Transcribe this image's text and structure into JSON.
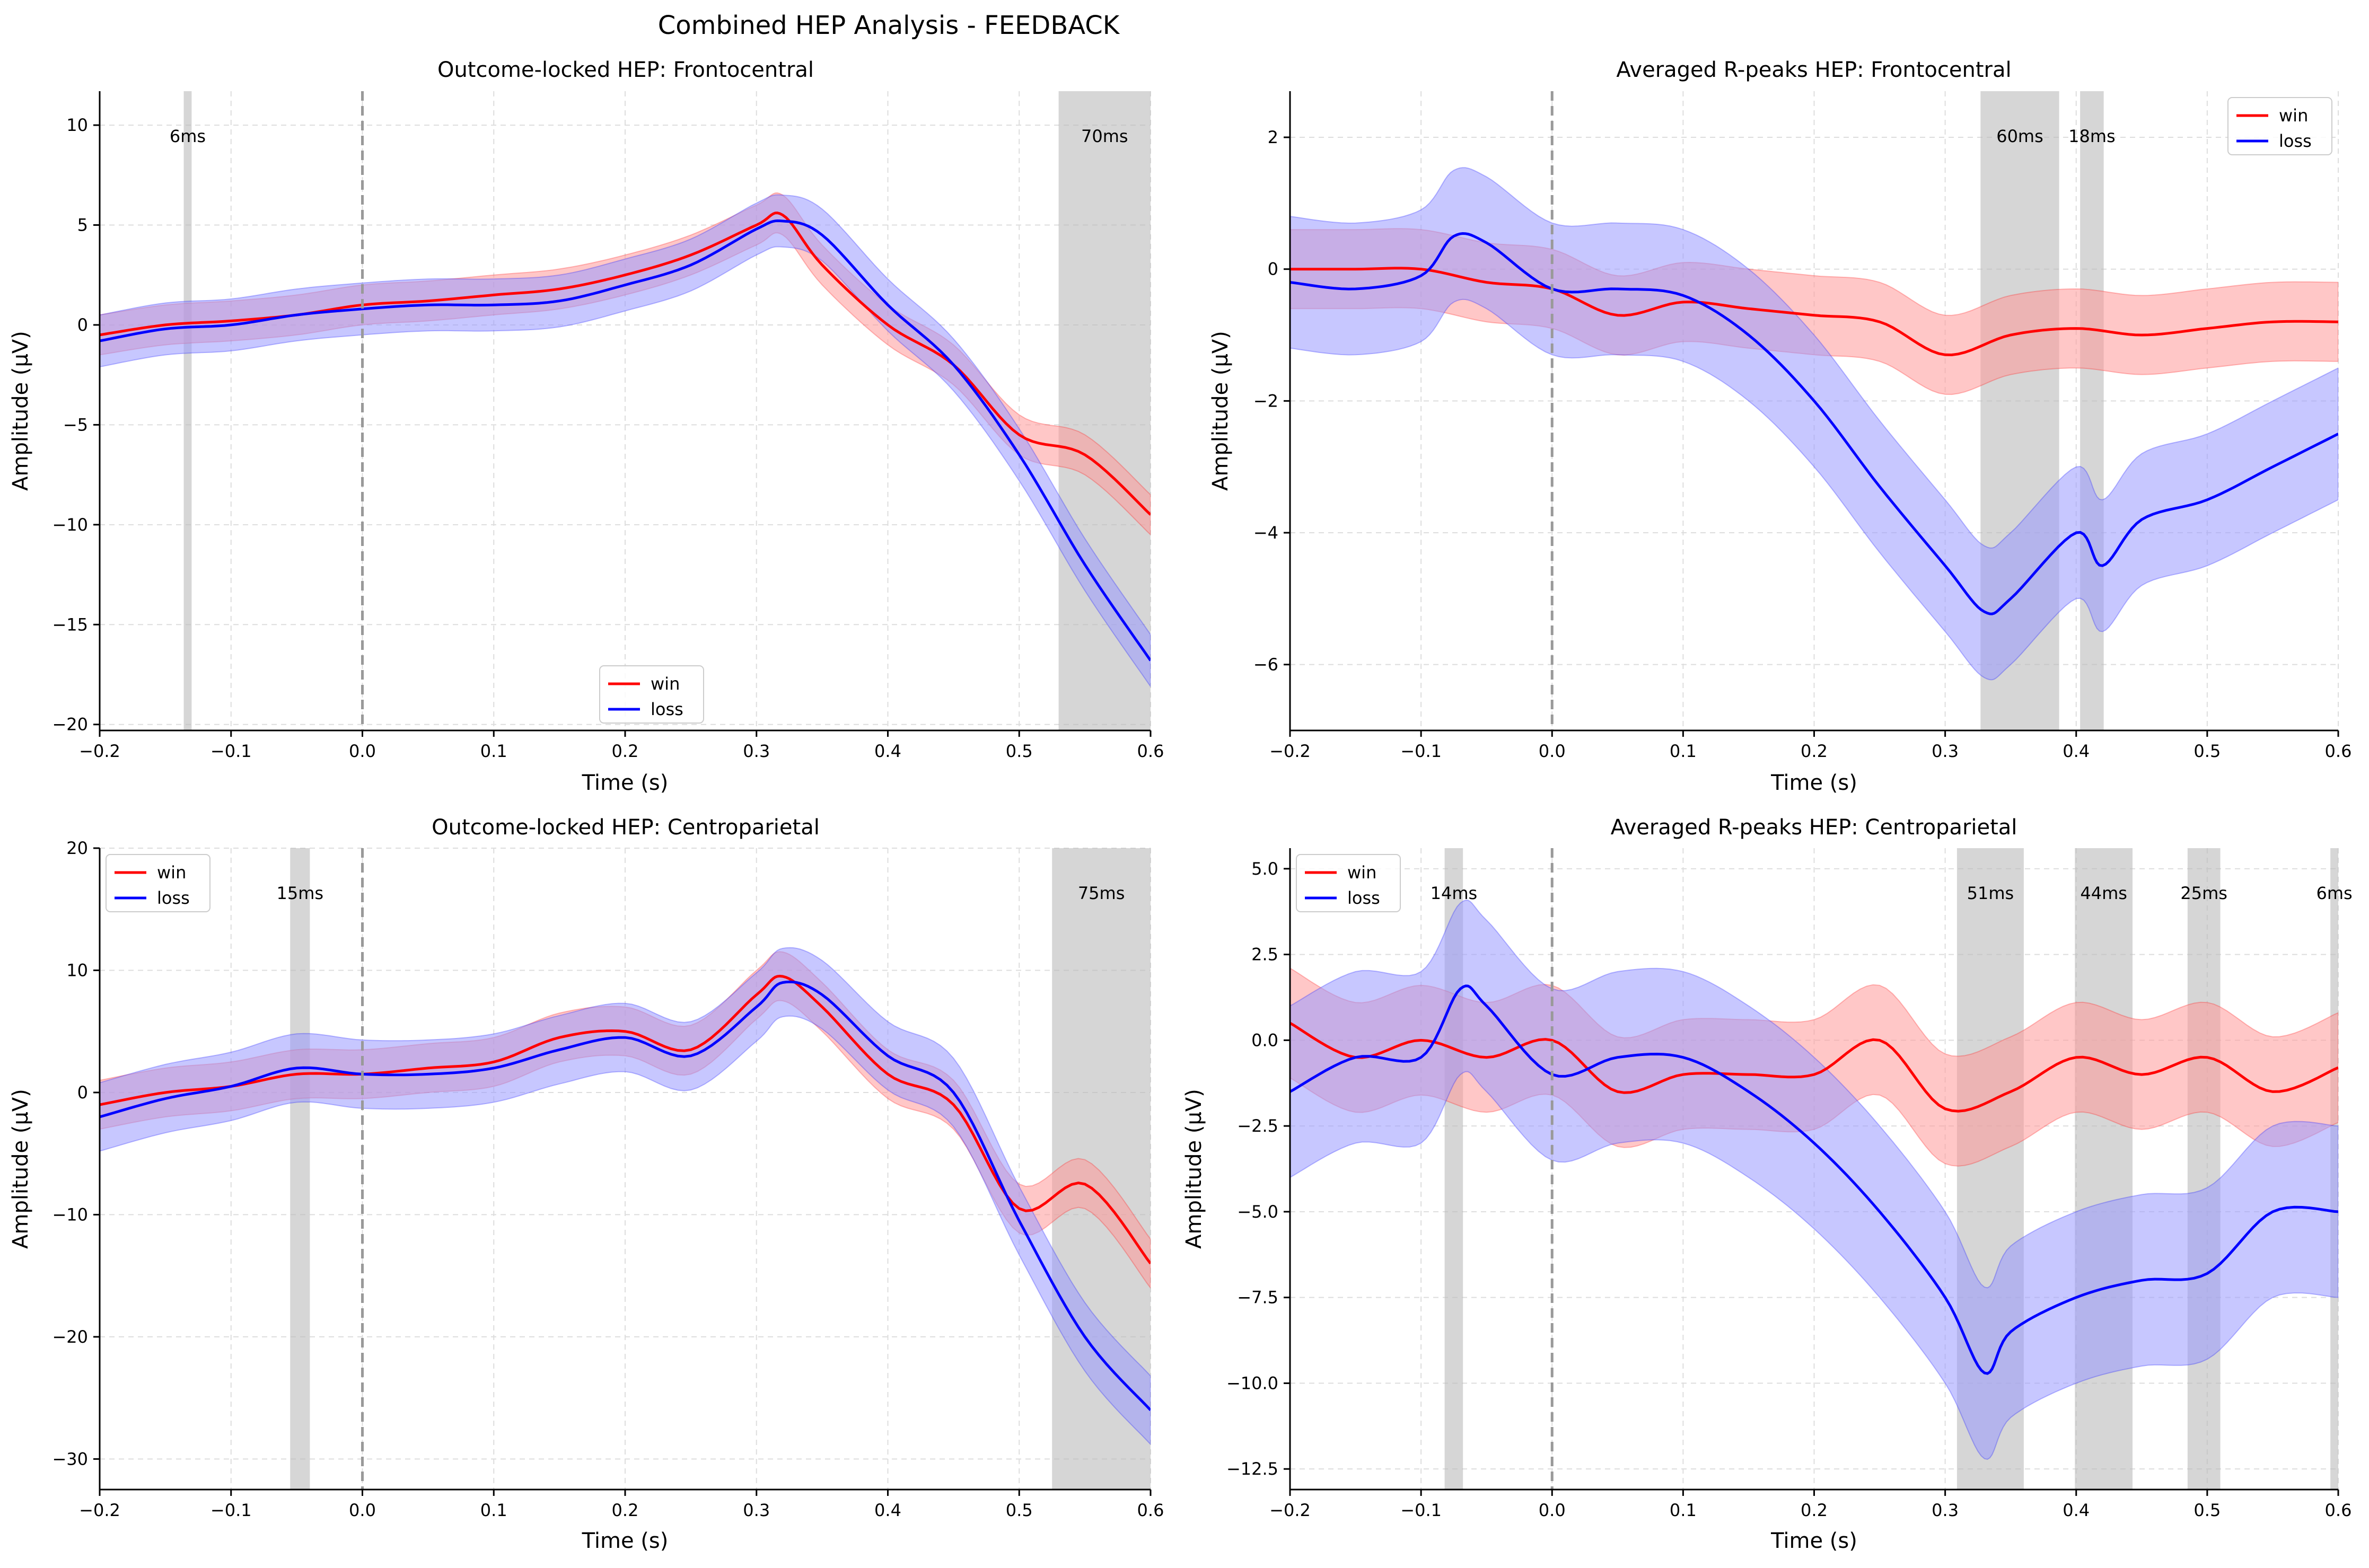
{
  "figure": {
    "title": "Combined HEP Analysis - FEEDBACK"
  },
  "colors": {
    "win": "#ff0000",
    "win_fill": "#ff9999",
    "loss": "#0000ff",
    "loss_fill": "#9999ff",
    "sig_span": "#bbbbbb",
    "zero_line": "#999999",
    "grid": "#dddddd"
  },
  "chart_data": [
    {
      "type": "line",
      "title": "Outcome-locked HEP: Frontocentral",
      "xlabel": "Time (s)",
      "ylabel": "Amplitude (μV)",
      "xlim": [
        -0.2,
        0.6
      ],
      "ylim": [
        -20.3,
        11.7
      ],
      "xticks": [
        -0.2,
        -0.1,
        0.0,
        0.1,
        0.2,
        0.3,
        0.4,
        0.5,
        0.6
      ],
      "xtick_labels": [
        "−0.2",
        "−0.1",
        "0.0",
        "0.1",
        "0.2",
        "0.3",
        "0.4",
        "0.5",
        "0.6"
      ],
      "yticks": [
        10,
        5,
        0,
        -5,
        -10,
        -15,
        -20
      ],
      "ytick_labels": [
        "10",
        "5",
        "0",
        "−5",
        "−10",
        "−15",
        "−20"
      ],
      "grid": true,
      "legend": "lower-center",
      "zero_line_x": 0.0,
      "significant_spans": [
        {
          "start": -0.136,
          "end": -0.13,
          "label": "6ms"
        },
        {
          "start": 0.53,
          "end": 0.6,
          "label": "70ms"
        }
      ],
      "series": [
        {
          "name": "win",
          "x": [
            -0.2,
            -0.15,
            -0.1,
            -0.05,
            0.0,
            0.05,
            0.1,
            0.15,
            0.2,
            0.25,
            0.3,
            0.32,
            0.35,
            0.4,
            0.45,
            0.5,
            0.55,
            0.6
          ],
          "values": [
            -0.5,
            0.0,
            0.2,
            0.5,
            1.0,
            1.2,
            1.5,
            1.8,
            2.5,
            3.5,
            5.0,
            5.5,
            3.0,
            0.0,
            -2.0,
            -5.5,
            -6.5,
            -9.5
          ],
          "error": 1.0
        },
        {
          "name": "loss",
          "x": [
            -0.2,
            -0.15,
            -0.1,
            -0.05,
            0.0,
            0.05,
            0.1,
            0.15,
            0.2,
            0.25,
            0.3,
            0.32,
            0.35,
            0.4,
            0.45,
            0.5,
            0.55,
            0.6
          ],
          "values": [
            -0.8,
            -0.2,
            0.0,
            0.5,
            0.8,
            1.0,
            1.0,
            1.2,
            2.0,
            3.0,
            4.8,
            5.2,
            4.5,
            1.0,
            -2.0,
            -6.5,
            -12.0,
            -16.8
          ],
          "error": 1.3
        }
      ]
    },
    {
      "type": "line",
      "title": "Averaged R-peaks HEP: Frontocentral",
      "xlabel": "Time (s)",
      "ylabel": "Amplitude (μV)",
      "xlim": [
        -0.2,
        0.6
      ],
      "ylim": [
        -7.0,
        2.7
      ],
      "xticks": [
        -0.2,
        -0.1,
        0.0,
        0.1,
        0.2,
        0.3,
        0.4,
        0.5,
        0.6
      ],
      "xtick_labels": [
        "−0.2",
        "−0.1",
        "0.0",
        "0.1",
        "0.2",
        "0.3",
        "0.4",
        "0.5",
        "0.6"
      ],
      "yticks": [
        2,
        0,
        -2,
        -4,
        -6
      ],
      "ytick_labels": [
        "2",
        "0",
        "−2",
        "−4",
        "−6"
      ],
      "grid": true,
      "legend": "upper-right",
      "zero_line_x": 0.0,
      "significant_spans": [
        {
          "start": 0.327,
          "end": 0.387,
          "label": "60ms"
        },
        {
          "start": 0.403,
          "end": 0.421,
          "label": "18ms"
        }
      ],
      "series": [
        {
          "name": "win",
          "x": [
            -0.2,
            -0.15,
            -0.1,
            -0.05,
            0.0,
            0.05,
            0.1,
            0.15,
            0.2,
            0.25,
            0.3,
            0.35,
            0.4,
            0.45,
            0.5,
            0.55,
            0.6
          ],
          "values": [
            0.0,
            0.0,
            0.0,
            -0.2,
            -0.3,
            -0.7,
            -0.5,
            -0.6,
            -0.7,
            -0.8,
            -1.3,
            -1.0,
            -0.9,
            -1.0,
            -0.9,
            -0.8,
            -0.8
          ],
          "error": 0.6
        },
        {
          "name": "loss",
          "x": [
            -0.2,
            -0.15,
            -0.1,
            -0.075,
            -0.05,
            0.0,
            0.05,
            0.1,
            0.15,
            0.2,
            0.25,
            0.3,
            0.33,
            0.35,
            0.4,
            0.42,
            0.45,
            0.5,
            0.55,
            0.6
          ],
          "values": [
            -0.2,
            -0.3,
            -0.1,
            0.5,
            0.4,
            -0.3,
            -0.3,
            -0.4,
            -1.0,
            -2.0,
            -3.3,
            -4.5,
            -5.2,
            -5.0,
            -4.0,
            -4.5,
            -3.8,
            -3.5,
            -3.0,
            -2.5
          ],
          "error": 1.0
        }
      ]
    },
    {
      "type": "line",
      "title": "Outcome-locked HEP: Centroparietal",
      "xlabel": "Time (s)",
      "ylabel": "Amplitude (μV)",
      "xlim": [
        -0.2,
        0.6
      ],
      "ylim": [
        -32.5,
        20.0
      ],
      "xticks": [
        -0.2,
        -0.1,
        0.0,
        0.1,
        0.2,
        0.3,
        0.4,
        0.5,
        0.6
      ],
      "xtick_labels": [
        "−0.2",
        "−0.1",
        "0.0",
        "0.1",
        "0.2",
        "0.3",
        "0.4",
        "0.5",
        "0.6"
      ],
      "yticks": [
        20,
        10,
        0,
        -10,
        -20,
        -30
      ],
      "ytick_labels": [
        "20",
        "10",
        "0",
        "−10",
        "−20",
        "−30"
      ],
      "grid": true,
      "legend": "upper-left",
      "zero_line_x": 0.0,
      "significant_spans": [
        {
          "start": -0.055,
          "end": -0.04,
          "label": "15ms"
        },
        {
          "start": 0.525,
          "end": 0.6,
          "label": "75ms"
        }
      ],
      "series": [
        {
          "name": "win",
          "x": [
            -0.2,
            -0.15,
            -0.1,
            -0.05,
            0.0,
            0.05,
            0.1,
            0.15,
            0.2,
            0.25,
            0.3,
            0.32,
            0.35,
            0.4,
            0.45,
            0.5,
            0.55,
            0.6
          ],
          "values": [
            -1.0,
            0.0,
            0.5,
            1.5,
            1.5,
            2.0,
            2.5,
            4.5,
            5.0,
            3.5,
            8.0,
            9.5,
            7.0,
            1.5,
            -1.0,
            -9.5,
            -7.5,
            -14.0
          ],
          "error": 2.0
        },
        {
          "name": "loss",
          "x": [
            -0.2,
            -0.15,
            -0.1,
            -0.05,
            0.0,
            0.05,
            0.1,
            0.15,
            0.2,
            0.25,
            0.3,
            0.32,
            0.35,
            0.4,
            0.45,
            0.5,
            0.55,
            0.6
          ],
          "values": [
            -2.0,
            -0.5,
            0.5,
            2.0,
            1.5,
            1.5,
            2.0,
            3.5,
            4.5,
            3.0,
            7.0,
            9.0,
            8.0,
            3.0,
            0.0,
            -10.5,
            -20.0,
            -26.0
          ],
          "error": 2.8
        }
      ]
    },
    {
      "type": "line",
      "title": "Averaged R-peaks HEP: Centroparietal",
      "xlabel": "Time (s)",
      "ylabel": "Amplitude (μV)",
      "xlim": [
        -0.2,
        0.6
      ],
      "ylim": [
        -13.1,
        5.6
      ],
      "xticks": [
        -0.2,
        -0.1,
        0.0,
        0.1,
        0.2,
        0.3,
        0.4,
        0.5,
        0.6
      ],
      "xtick_labels": [
        "−0.2",
        "−0.1",
        "0.0",
        "0.1",
        "0.2",
        "0.3",
        "0.4",
        "0.5",
        "0.6"
      ],
      "yticks": [
        5.0,
        2.5,
        0.0,
        -2.5,
        -5.0,
        -7.5,
        -10.0,
        -12.5
      ],
      "ytick_labels": [
        "5.0",
        "2.5",
        "0.0",
        "−2.5",
        "−5.0",
        "−7.5",
        "−10.0",
        "−12.5"
      ],
      "grid": true,
      "legend": "upper-left",
      "zero_line_x": 0.0,
      "significant_spans": [
        {
          "start": -0.082,
          "end": -0.068,
          "label": "14ms"
        },
        {
          "start": 0.309,
          "end": 0.36,
          "label": "51ms"
        },
        {
          "start": 0.399,
          "end": 0.443,
          "label": "44ms"
        },
        {
          "start": 0.485,
          "end": 0.51,
          "label": "25ms"
        },
        {
          "start": 0.594,
          "end": 0.6,
          "label": "6ms"
        }
      ],
      "series": [
        {
          "name": "win",
          "x": [
            -0.2,
            -0.15,
            -0.1,
            -0.05,
            0.0,
            0.05,
            0.1,
            0.15,
            0.2,
            0.25,
            0.3,
            0.35,
            0.4,
            0.45,
            0.5,
            0.55,
            0.6
          ],
          "values": [
            0.5,
            -0.5,
            0.0,
            -0.5,
            0.0,
            -1.5,
            -1.0,
            -1.0,
            -1.0,
            0.0,
            -2.0,
            -1.5,
            -0.5,
            -1.0,
            -0.5,
            -1.5,
            -0.8
          ],
          "error": 1.6
        },
        {
          "name": "loss",
          "x": [
            -0.2,
            -0.15,
            -0.1,
            -0.07,
            -0.05,
            0.0,
            0.05,
            0.1,
            0.15,
            0.2,
            0.25,
            0.3,
            0.33,
            0.35,
            0.4,
            0.45,
            0.5,
            0.55,
            0.6
          ],
          "values": [
            -1.5,
            -0.5,
            -0.5,
            1.5,
            1.0,
            -1.0,
            -0.5,
            -0.5,
            -1.5,
            -3.0,
            -5.0,
            -7.5,
            -9.7,
            -8.5,
            -7.5,
            -7.0,
            -6.8,
            -5.0,
            -5.0
          ],
          "error": 2.5
        }
      ]
    }
  ]
}
